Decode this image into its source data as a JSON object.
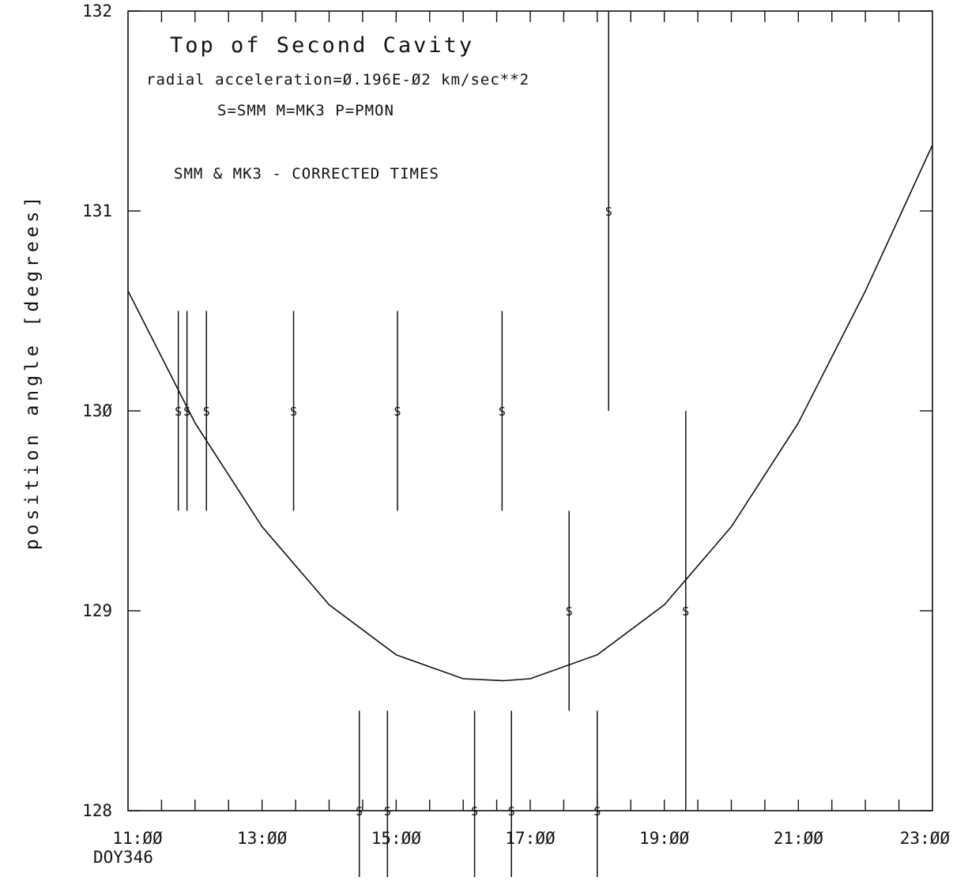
{
  "chart_data": {
    "type": "scatter",
    "title": "Top of Second Cavity",
    "subtitle": "radial acceleration=Ø.196E-Ø2  km/sec**2",
    "legend_text": "S=SMM  M=MK3  P=PMON",
    "annotation": "SMM & MK3 - CORRECTED TIMES",
    "ylabel": "position angle [degrees]",
    "xlabel": "",
    "x_sublabel": "DOY346",
    "xlim": [
      11.0,
      23.0
    ],
    "ylim": [
      128,
      132
    ],
    "x_tick_labels": [
      {
        "x": 11,
        "label": "11:ØØ"
      },
      {
        "x": 13,
        "label": "13:ØØ"
      },
      {
        "x": 15,
        "label": "15:ØØ"
      },
      {
        "x": 17,
        "label": "17:ØØ"
      },
      {
        "x": 19,
        "label": "19:ØØ"
      },
      {
        "x": 21,
        "label": "21:ØØ"
      },
      {
        "x": 23,
        "label": "23:ØØ"
      }
    ],
    "y_tick_labels": [
      {
        "y": 128,
        "label": "128"
      },
      {
        "y": 129,
        "label": "129"
      },
      {
        "y": 130,
        "label": "13Ø"
      },
      {
        "y": 131,
        "label": "131"
      },
      {
        "y": 132,
        "label": "132"
      }
    ],
    "x_minor_step": 0.5,
    "series": [
      {
        "symbol": "S",
        "points": [
          {
            "x": 11.75,
            "y": 130,
            "ylow": 129.5,
            "yhigh": 130.5
          },
          {
            "x": 11.88,
            "y": 130,
            "ylow": 129.5,
            "yhigh": 130.5
          },
          {
            "x": 12.17,
            "y": 130,
            "ylow": 129.5,
            "yhigh": 130.5
          },
          {
            "x": 13.47,
            "y": 130,
            "ylow": 129.5,
            "yhigh": 130.5
          },
          {
            "x": 15.02,
            "y": 130,
            "ylow": 129.5,
            "yhigh": 130.5
          },
          {
            "x": 16.58,
            "y": 130,
            "ylow": 129.5,
            "yhigh": 130.5
          },
          {
            "x": 18.17,
            "y": 131,
            "ylow": 130.0,
            "yhigh": 132.0
          },
          {
            "x": 17.58,
            "y": 129,
            "ylow": 128.5,
            "yhigh": 129.5
          },
          {
            "x": 19.32,
            "y": 129,
            "ylow": 128.0,
            "yhigh": 130.0
          },
          {
            "x": 14.45,
            "y": 128,
            "ylow": 127.5,
            "yhigh": 128.5
          },
          {
            "x": 14.87,
            "y": 128,
            "ylow": 127.5,
            "yhigh": 128.5
          },
          {
            "x": 16.17,
            "y": 128,
            "ylow": 127.5,
            "yhigh": 128.5
          },
          {
            "x": 16.72,
            "y": 128,
            "ylow": 127.5,
            "yhigh": 128.5
          },
          {
            "x": 18.0,
            "y": 128,
            "ylow": 127.5,
            "yhigh": 128.5
          }
        ]
      }
    ],
    "fit_curve": {
      "type": "parabola",
      "x": [
        11.0,
        12.0,
        13.0,
        14.0,
        15.0,
        16.0,
        16.6,
        17.0,
        18.0,
        19.0,
        20.0,
        21.0,
        22.0,
        23.0
      ],
      "y": [
        130.6,
        129.94,
        129.42,
        129.03,
        128.78,
        128.66,
        128.65,
        128.66,
        128.78,
        129.03,
        129.42,
        129.94,
        130.6,
        131.33
      ]
    },
    "grid": false
  }
}
